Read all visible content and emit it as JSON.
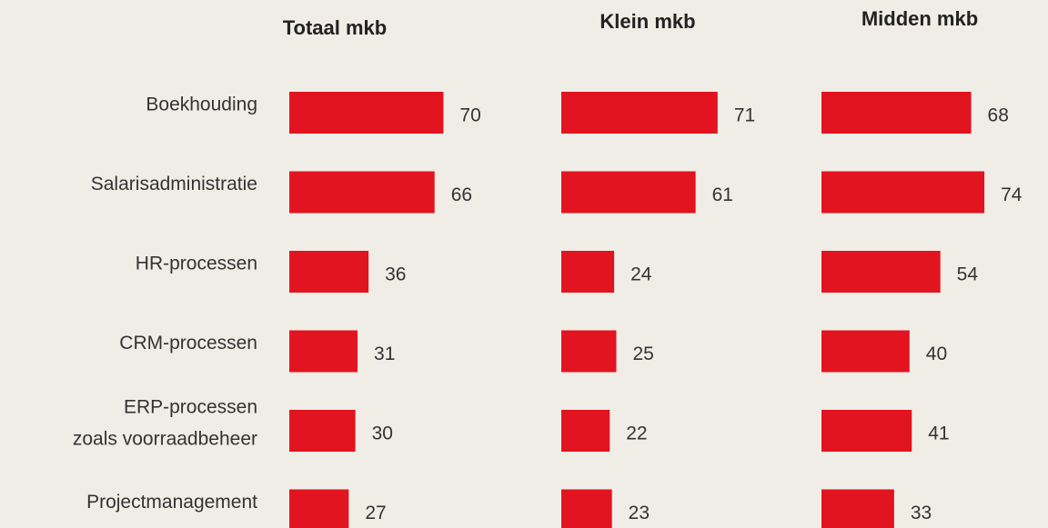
{
  "chart_data": {
    "type": "bar",
    "categories": [
      "Boekhouding",
      "Salarisadministratie",
      "HR-processen",
      "CRM-processen",
      "ERP-processen\nzoals voorraadbeheer",
      "Projectmanagement"
    ],
    "series": [
      {
        "name": "Totaal mkb",
        "color": "#e2141f",
        "values": [
          70,
          66,
          36,
          31,
          30,
          27
        ]
      },
      {
        "name": "Klein mkb",
        "color": "#e2141f",
        "values": [
          71,
          61,
          24,
          25,
          22,
          23
        ]
      },
      {
        "name": "Midden mkb",
        "color": "#e2141f",
        "values": [
          68,
          74,
          54,
          40,
          41,
          33
        ]
      }
    ]
  }
}
